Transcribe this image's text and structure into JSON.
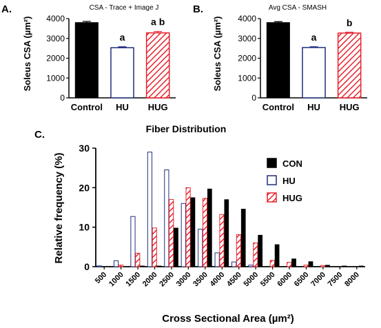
{
  "colors": {
    "con": "#000000",
    "hu": "#1f2d7a",
    "hug": "#e8202a"
  },
  "chart_data": [
    {
      "panel": "A.",
      "type": "bar",
      "title": "CSA - Trace + Image J",
      "ylabel": "Soleus CSA (µm²)",
      "ylim": [
        0,
        4000
      ],
      "yticks": [
        "0",
        "1000",
        "2000",
        "3000",
        "4000"
      ],
      "categories": [
        "Control",
        "HU",
        "HUG"
      ],
      "values": [
        3800,
        2530,
        3280
      ],
      "errors": [
        60,
        50,
        70
      ],
      "significance": [
        "",
        "a",
        "a b"
      ],
      "styles": [
        "solid",
        "open",
        "hatched"
      ]
    },
    {
      "panel": "B.",
      "type": "bar",
      "title": "Avg CSA - SMASH",
      "ylabel": "Soleus CSA (µm²)",
      "ylim": [
        0,
        4000
      ],
      "yticks": [
        "0",
        "1000",
        "2000",
        "3000",
        "4000"
      ],
      "categories": [
        "Control",
        "HU",
        "HUG"
      ],
      "values": [
        3800,
        2540,
        3270
      ],
      "errors": [
        50,
        40,
        40
      ],
      "significance": [
        "",
        "a",
        "b"
      ],
      "styles": [
        "solid",
        "open",
        "hatched"
      ]
    },
    {
      "panel": "C.",
      "type": "bar",
      "title": "Fiber Distribution",
      "xlabel": "Cross Sectional Area (µm²)",
      "ylabel": "Relative frequency (%)",
      "ylim": [
        0,
        30
      ],
      "yticks": [
        "0",
        "10",
        "20",
        "30"
      ],
      "categories": [
        "500",
        "1000",
        "1500",
        "2000",
        "2500",
        "3000",
        "3500",
        "4000",
        "4500",
        "5000",
        "5500",
        "6000",
        "6500",
        "7000",
        "7500",
        "8000"
      ],
      "legend_position": "top-right",
      "series": [
        {
          "name": "CON",
          "style": "solid",
          "values": [
            0,
            0,
            0.2,
            0.2,
            9.8,
            17.5,
            19.7,
            17.0,
            14.6,
            8.0,
            5.6,
            2.0,
            1.3,
            0.4,
            0.2,
            0.2
          ]
        },
        {
          "name": "HU",
          "style": "open",
          "values": [
            0.2,
            1.5,
            12.7,
            29.0,
            24.5,
            16.0,
            9.5,
            3.5,
            1.2,
            0.4,
            0,
            0,
            0,
            0,
            0,
            0
          ]
        },
        {
          "name": "HUG",
          "style": "hatched",
          "values": [
            0,
            0.4,
            3.4,
            9.8,
            17.0,
            20.0,
            17.3,
            13.2,
            8.1,
            6.0,
            1.6,
            1.1,
            0.4,
            0.3,
            0,
            0
          ]
        }
      ]
    }
  ]
}
